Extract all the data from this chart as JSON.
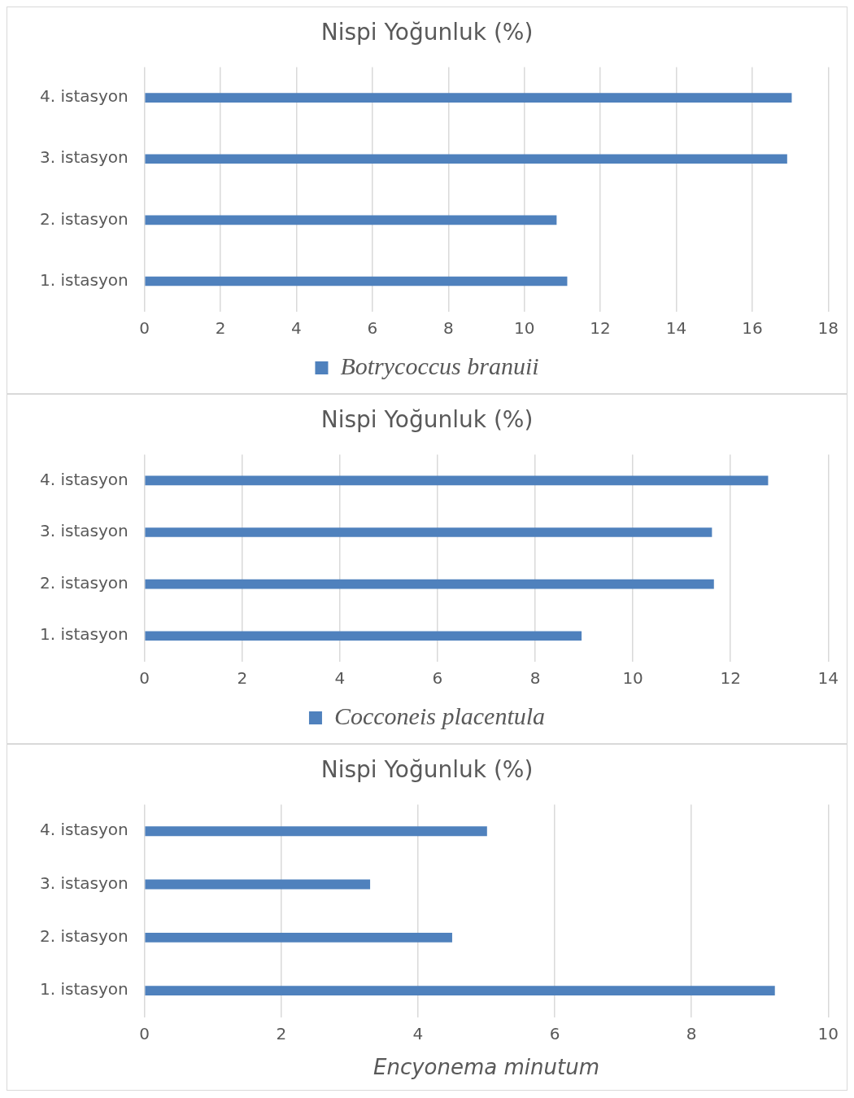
{
  "chart_data": [
    {
      "type": "bar",
      "orientation": "horizontal",
      "title": "Nispi Yoğunluk (%)",
      "categories": [
        "4. istasyon",
        "3. istasyon",
        "2. istasyon",
        "1. istasyon"
      ],
      "series": [
        {
          "name": "Botrycoccus branuii",
          "color": "#4f81bd",
          "values": [
            17.04,
            16.92,
            10.85,
            11.13
          ]
        }
      ],
      "xlim": [
        0,
        18
      ],
      "xticks": [
        0,
        2,
        4,
        6,
        8,
        10,
        12,
        14,
        16,
        18
      ],
      "grid": "x",
      "legend": "bottom"
    },
    {
      "type": "bar",
      "orientation": "horizontal",
      "title": "Nispi Yoğunluk (%)",
      "categories": [
        "4. istasyon",
        "3. istasyon",
        "2. istasyon",
        "1. istasyon"
      ],
      "series": [
        {
          "name": "Cocconeis placentula",
          "color": "#4f81bd",
          "values": [
            12.77,
            11.62,
            11.66,
            8.95
          ]
        }
      ],
      "xlim": [
        0,
        14
      ],
      "xticks": [
        0,
        2,
        4,
        6,
        8,
        10,
        12,
        14
      ],
      "grid": "x",
      "legend": "bottom"
    },
    {
      "type": "bar",
      "orientation": "horizontal",
      "title": "Nispi Yoğunluk (%)",
      "xlabel": "Encyonema minutum",
      "categories": [
        "4. istasyon",
        "3. istasyon",
        "2. istasyon",
        "1. istasyon"
      ],
      "series": [
        {
          "color": "#4f81bd",
          "values": [
            5.01,
            3.3,
            4.5,
            9.22
          ]
        }
      ],
      "xlim": [
        0,
        10
      ],
      "xticks": [
        0,
        2,
        4,
        6,
        8,
        10
      ],
      "grid": "x"
    }
  ]
}
